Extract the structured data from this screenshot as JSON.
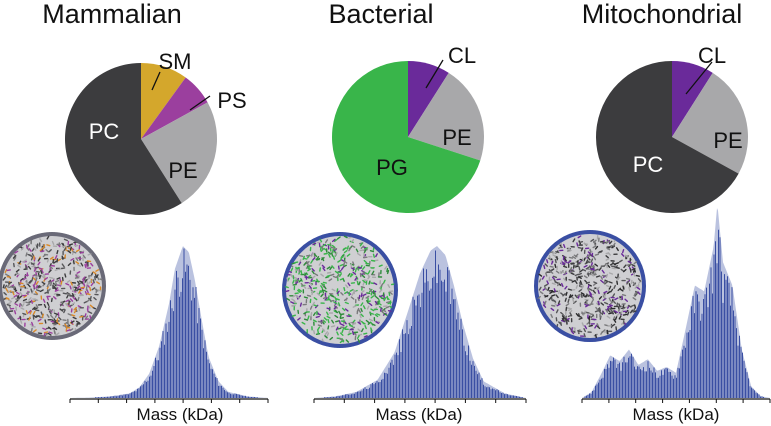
{
  "chart_data": [
    {
      "type": "pie",
      "title": "Mammalian",
      "slices": [
        {
          "label": "SM",
          "value": 10,
          "color": "#d4a72c",
          "label_color": "#111111"
        },
        {
          "label": "PS",
          "value": 7,
          "color": "#9b3f9e",
          "label_color": "#111111"
        },
        {
          "label": "PE",
          "value": 24,
          "color": "#a8a8aa",
          "label_color": "#111111"
        },
        {
          "label": "PC",
          "value": 59,
          "color": "#3c3c3e",
          "label_color": "#ffffff"
        }
      ]
    },
    {
      "type": "pie",
      "title": "Bacterial",
      "slices": [
        {
          "label": "CL",
          "value": 9,
          "color": "#6a2a9a",
          "label_color": "#111111"
        },
        {
          "label": "PE",
          "value": 21,
          "color": "#a8a8aa",
          "label_color": "#111111"
        },
        {
          "label": "PG",
          "value": 70,
          "color": "#39b54a",
          "label_color": "#111111"
        }
      ]
    },
    {
      "type": "pie",
      "title": "Mitochondrial",
      "slices": [
        {
          "label": "CL",
          "value": 9,
          "color": "#6a2a9a",
          "label_color": "#111111"
        },
        {
          "label": "PE",
          "value": 24,
          "color": "#a8a8aa",
          "label_color": "#111111"
        },
        {
          "label": "PC",
          "value": 67,
          "color": "#3c3c3e",
          "label_color": "#ffffff"
        }
      ]
    },
    {
      "type": "area",
      "xlabel": "Mass (kDa)",
      "color": "#3a4fa3",
      "x": [
        0,
        0.1,
        0.2,
        0.3,
        0.35,
        0.4,
        0.45,
        0.5,
        0.53,
        0.57,
        0.6,
        0.63,
        0.67,
        0.7,
        0.75,
        0.8,
        0.9,
        1.0
      ],
      "y": [
        0,
        0.003,
        0.01,
        0.03,
        0.07,
        0.16,
        0.34,
        0.62,
        0.85,
        1.0,
        0.96,
        0.78,
        0.48,
        0.27,
        0.11,
        0.04,
        0.01,
        0
      ]
    },
    {
      "type": "area",
      "xlabel": "Mass (kDa)",
      "color": "#3a4fa3",
      "x": [
        0,
        0.1,
        0.2,
        0.3,
        0.38,
        0.45,
        0.5,
        0.55,
        0.58,
        0.62,
        0.66,
        0.7,
        0.75,
        0.8,
        0.9,
        1.0
      ],
      "y": [
        0,
        0.01,
        0.04,
        0.12,
        0.3,
        0.6,
        0.82,
        0.97,
        1.0,
        0.94,
        0.74,
        0.5,
        0.26,
        0.11,
        0.03,
        0
      ]
    },
    {
      "type": "area",
      "xlabel": "Mass (kDa)",
      "color": "#3a4fa3",
      "x": [
        0,
        0.05,
        0.1,
        0.15,
        0.2,
        0.25,
        0.3,
        0.35,
        0.4,
        0.45,
        0.5,
        0.55,
        0.6,
        0.65,
        0.7,
        0.72,
        0.75,
        0.8,
        0.85,
        0.9,
        0.95,
        1.0
      ],
      "y": [
        0,
        0.03,
        0.12,
        0.22,
        0.19,
        0.25,
        0.17,
        0.2,
        0.14,
        0.16,
        0.13,
        0.35,
        0.58,
        0.55,
        0.78,
        1.0,
        0.7,
        0.58,
        0.25,
        0.06,
        0.01,
        0
      ]
    }
  ]
}
